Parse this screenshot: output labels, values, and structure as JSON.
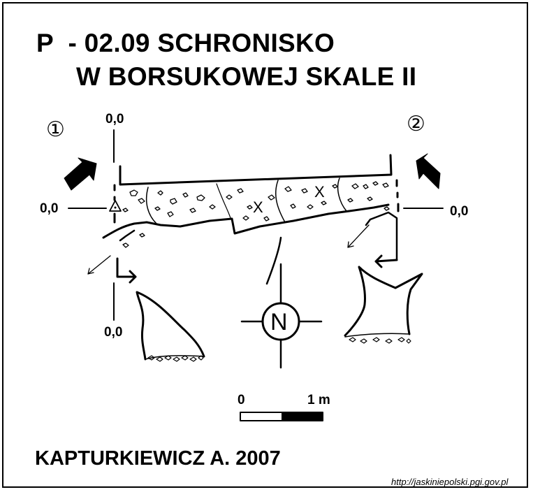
{
  "title": {
    "line1": "P  - 02.09 SCHRONISKO",
    "line2": "W BORSUKOWEJ SKALE II"
  },
  "section_markers": [
    "①",
    "②"
  ],
  "elevation_labels": {
    "top_left": "0,0",
    "left": "0,0",
    "right": "0,0",
    "bottom_left": "0,0"
  },
  "compass": {
    "letter": "N"
  },
  "scale_bar": {
    "start": "0",
    "end": "1 m"
  },
  "author": "KAPTURKIEWICZ A. 2007",
  "source_url": "http://jaskiniepolski.pgi.gov.pl",
  "colors": {
    "ink": "#000000",
    "paper": "#ffffff"
  }
}
